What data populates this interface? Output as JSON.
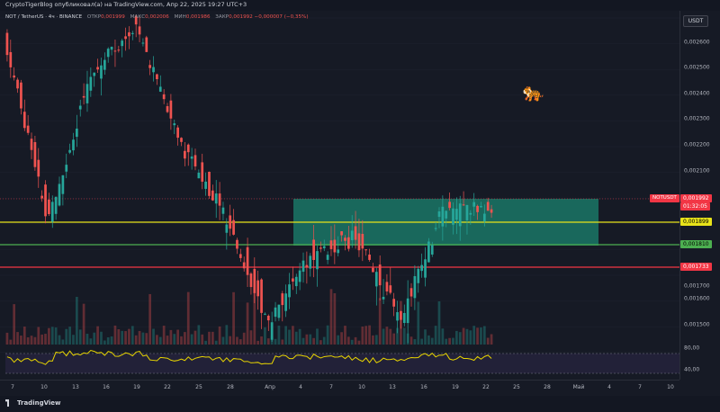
{
  "header": {
    "title_line": "CryptoTigerBlog опубликовал(а) на TradingView.com, Апр 22, 2025 19:27 UTC+3",
    "symbol": "NOT / TetherUS · 4ч · BINANCE",
    "open_label": "ОТКР",
    "open_value": "0,001999",
    "high_label": "МАКС",
    "high_value": "0,002006",
    "low_label": "МИН",
    "low_value": "0,001986",
    "close_label": "ЗАКР",
    "close_value": "0,001992",
    "change": "−0,000007 (−0,35%)"
  },
  "price_axis": {
    "currency_button": "USDT",
    "ticks": [
      "0,002600",
      "0,002500",
      "0,002400",
      "0,002300",
      "0,002200",
      "0,002100",
      "0,001700",
      "0,001600",
      "0,001500"
    ],
    "symbol_tag": "NOTUSDT",
    "current_price": "0,001992",
    "countdown": "01:32:05",
    "level_yellow": "0,001899",
    "level_green": "0,001810",
    "level_red": "0,001733"
  },
  "rsi_axis": {
    "ticks": [
      "80,00",
      "40,00"
    ]
  },
  "time_axis": {
    "ticks": [
      "7",
      "10",
      "13",
      "16",
      "19",
      "22",
      "25",
      "28",
      "Апр",
      "4",
      "7",
      "10",
      "13",
      "16",
      "19",
      "22",
      "25",
      "28",
      "Май",
      "4",
      "7",
      "10"
    ]
  },
  "brand": {
    "name": "TradingView"
  },
  "colors": {
    "background": "#161a25",
    "up": "#26a69a",
    "down": "#ef5350",
    "zone": "#1b8a74",
    "yellow_level": "#e8e31a",
    "green_level": "#4caf50",
    "red_level": "#f23645",
    "rsi_line": "#e8d500"
  },
  "icons": {
    "tiger": "tiger-emoji"
  },
  "chart_data": {
    "type": "candlestick",
    "symbol": "NOTUSDT",
    "timeframe": "4h",
    "ylim": [
      0.00155,
      0.00266
    ],
    "key_points": [
      {
        "date": "Mar 6",
        "price": 0.00258
      },
      {
        "date": "Mar 11",
        "price": 0.00196
      },
      {
        "date": "Mar 16",
        "price": 0.00245
      },
      {
        "date": "Mar 26",
        "price": 0.00262
      },
      {
        "date": "Apr 1",
        "price": 0.00222
      },
      {
        "date": "Apr 5",
        "price": 0.00198
      },
      {
        "date": "Apr 7",
        "price": 0.00161
      },
      {
        "date": "Apr 11",
        "price": 0.00185
      },
      {
        "date": "Apr 13",
        "price": 0.0019
      },
      {
        "date": "Apr 17",
        "price": 0.00163
      },
      {
        "date": "Apr 21",
        "price": 0.002
      },
      {
        "date": "Apr 22",
        "price": 0.001992
      }
    ],
    "horizontal_levels": [
      0.001899,
      0.00181,
      0.001733
    ],
    "zone": {
      "top": 0.00199,
      "bottom": 0.00181
    },
    "rsi_levels": [
      80,
      40
    ]
  }
}
